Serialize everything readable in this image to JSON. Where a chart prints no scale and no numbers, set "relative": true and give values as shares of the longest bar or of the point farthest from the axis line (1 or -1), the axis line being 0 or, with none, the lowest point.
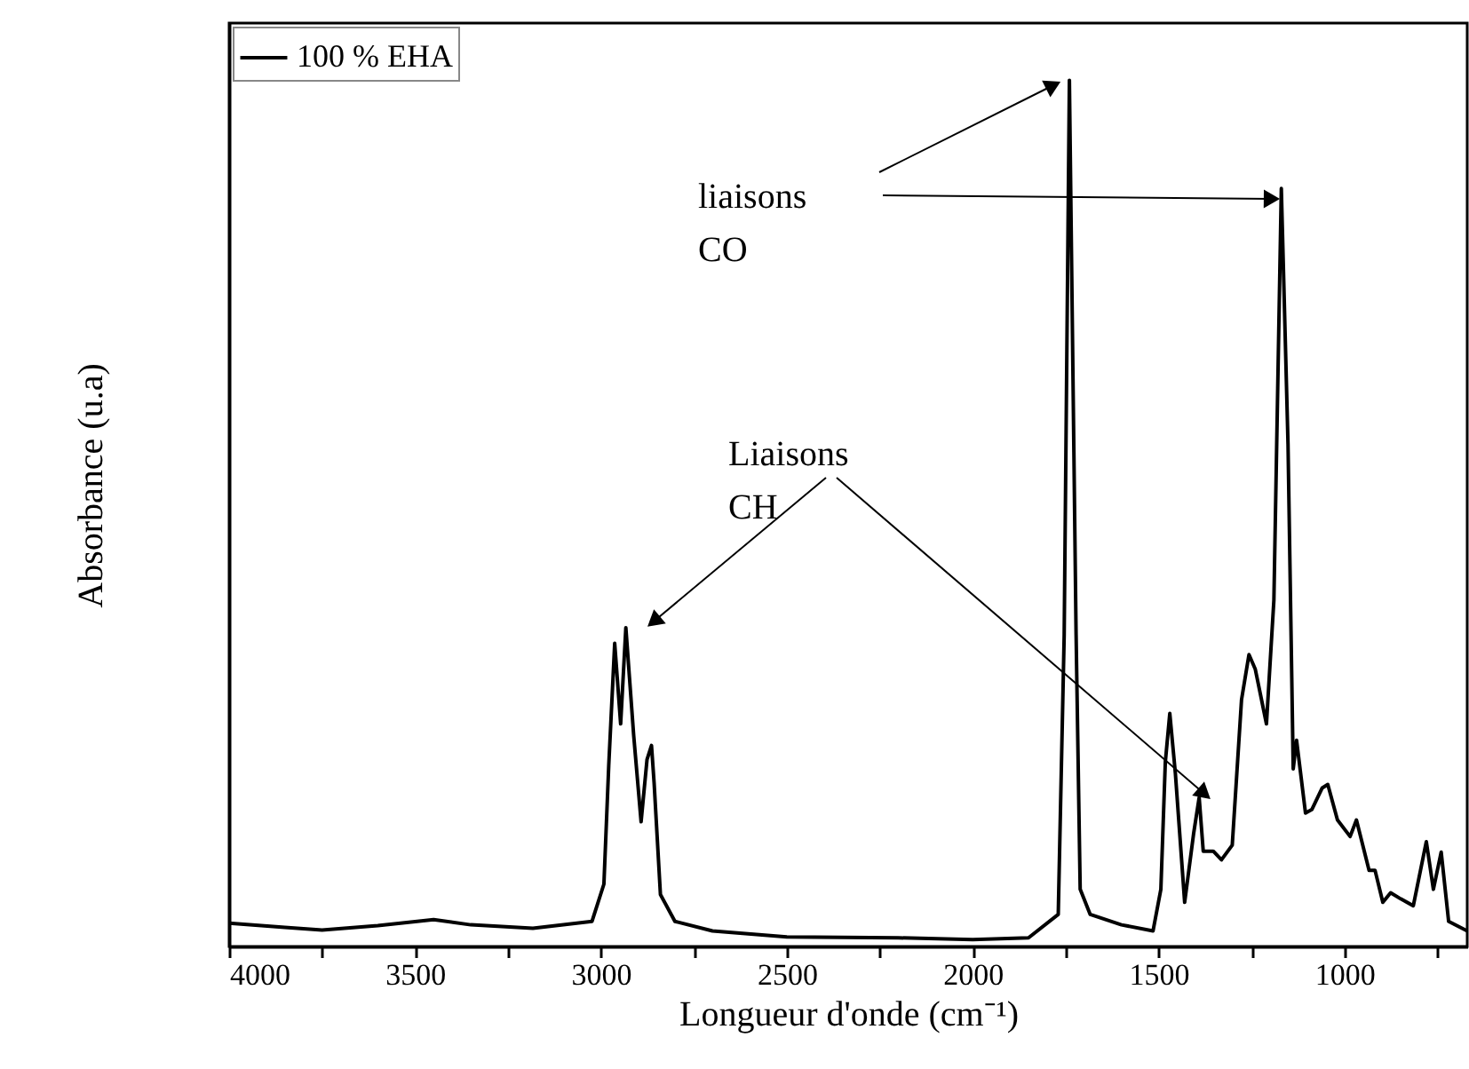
{
  "chart_data": {
    "type": "line",
    "relative": true,
    "xlabel": "Longueur d'onde (cm⁻¹)",
    "ylabel": "Absorbance (u.a)",
    "xlim": [
      4000,
      670
    ],
    "xticks": [
      4000,
      {
        "value": 3750,
        "label": null
      },
      3500,
      {
        "value": 3250,
        "label": null
      },
      3000,
      {
        "value": 2750,
        "label": null
      },
      2500,
      {
        "value": 2250,
        "label": null
      },
      2000,
      {
        "value": 1750,
        "label": null
      },
      1500,
      {
        "value": 1250,
        "label": null
      },
      1000,
      {
        "value": 750,
        "label": null
      }
    ],
    "legend": "top left",
    "grid": false,
    "annotations": [
      "liaisons\nCO",
      "Liaisons\nCH"
    ],
    "series": [
      {
        "name": "100 % EHA",
        "color": "#000000",
        "x": [
          4000,
          3850,
          3750,
          3600,
          3450,
          3350,
          3183,
          3024,
          2992,
          2979,
          2963,
          2947,
          2933,
          2912,
          2892,
          2876,
          2864,
          2857,
          2840,
          2801,
          2700,
          2500,
          2200,
          2000,
          1850,
          1770,
          1754,
          1740,
          1722,
          1711,
          1684,
          1600,
          1515,
          1494,
          1482,
          1470,
          1455,
          1430,
          1406,
          1391,
          1380,
          1353,
          1331,
          1302,
          1277,
          1257,
          1240,
          1210,
          1190,
          1170,
          1152,
          1138,
          1129,
          1105,
          1088,
          1060,
          1045,
          1019,
          985,
          968,
          934,
          918,
          897,
          876,
          849,
          815,
          780,
          761,
          740,
          720,
          670
        ],
        "values": [
          0.027,
          0.022,
          0.019,
          0.024,
          0.031,
          0.025,
          0.021,
          0.029,
          0.072,
          0.209,
          0.35,
          0.257,
          0.368,
          0.244,
          0.144,
          0.216,
          0.232,
          0.189,
          0.06,
          0.029,
          0.018,
          0.011,
          0.01,
          0.008,
          0.01,
          0.037,
          0.36,
          1,
          0.36,
          0.066,
          0.037,
          0.025,
          0.018,
          0.066,
          0.213,
          0.269,
          0.2,
          0.051,
          0.13,
          0.172,
          0.11,
          0.11,
          0.1,
          0.117,
          0.285,
          0.337,
          0.32,
          0.257,
          0.4,
          0.875,
          0.58,
          0.205,
          0.238,
          0.154,
          0.158,
          0.183,
          0.187,
          0.146,
          0.127,
          0.146,
          0.088,
          0.088,
          0.051,
          0.062,
          0.055,
          0.047,
          0.121,
          0.066,
          0.109,
          0.029,
          0.018
        ]
      }
    ]
  }
}
